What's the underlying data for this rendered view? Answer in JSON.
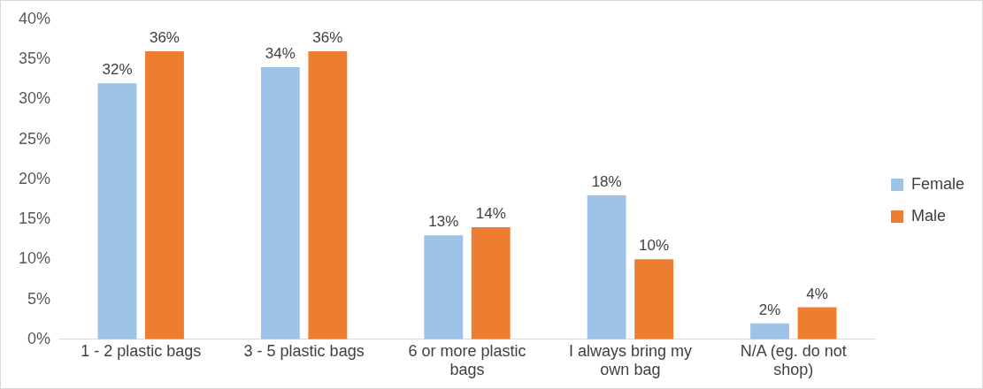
{
  "chart_data": {
    "type": "bar",
    "categories": [
      "1 - 2 plastic bags",
      "3 - 5 plastic bags",
      "6 or more plastic bags",
      "I always bring my own bag",
      "N/A (eg. do not shop)"
    ],
    "series": [
      {
        "name": "Female",
        "color": "#9dc3e6",
        "values": [
          32,
          34,
          13,
          18,
          2
        ],
        "value_labels": [
          "32%",
          "34%",
          "13%",
          "18%",
          "2%"
        ]
      },
      {
        "name": "Male",
        "color": "#ed7d31",
        "values": [
          36,
          36,
          14,
          10,
          4
        ],
        "value_labels": [
          "36%",
          "36%",
          "14%",
          "10%",
          "4%"
        ]
      }
    ],
    "ylim": [
      0,
      40
    ],
    "yticks": [
      {
        "value": 0,
        "label": "0%"
      },
      {
        "value": 5,
        "label": "5%"
      },
      {
        "value": 10,
        "label": "10%"
      },
      {
        "value": 15,
        "label": "15%"
      },
      {
        "value": 20,
        "label": "20%"
      },
      {
        "value": 25,
        "label": "25%"
      },
      {
        "value": 30,
        "label": "30%"
      },
      {
        "value": 35,
        "label": "35%"
      },
      {
        "value": 40,
        "label": "40%"
      }
    ],
    "grid": false,
    "legend": "right"
  }
}
